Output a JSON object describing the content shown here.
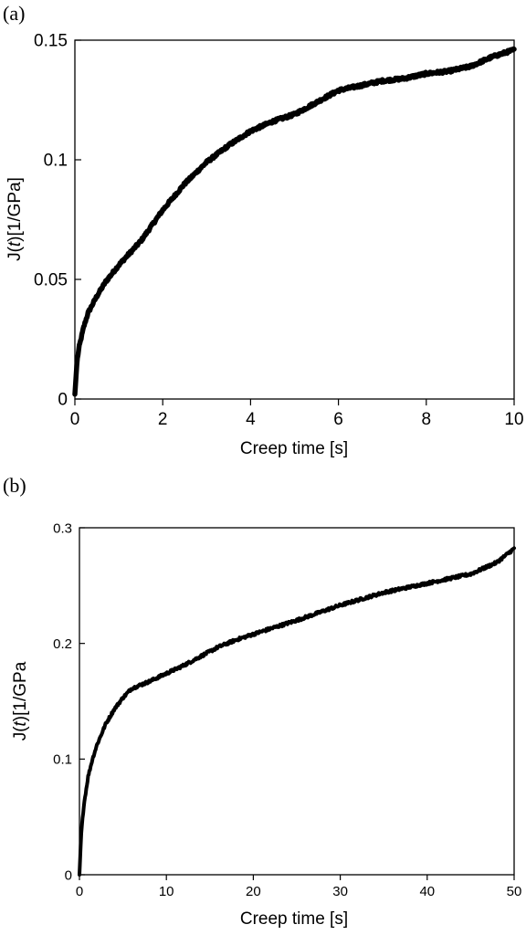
{
  "chart_data": [
    {
      "type": "line",
      "panel_label": "(a)",
      "xlabel": "Creep time [s]",
      "ylabel_prefix": "J(",
      "ylabel_var": "t",
      "ylabel_suffix": ")[1/GPa]",
      "xlim": [
        0,
        10
      ],
      "ylim": [
        0,
        0.15
      ],
      "xticks": [
        0,
        2,
        4,
        6,
        8,
        10
      ],
      "yticks": [
        0,
        0.05,
        0.1,
        0.15
      ],
      "xtick_labels": [
        "0",
        "2",
        "4",
        "6",
        "8",
        "10"
      ],
      "ytick_labels": [
        "0",
        "0.05",
        "0.1",
        "0.15"
      ],
      "grid": false,
      "series": [
        {
          "color": "#000000",
          "x": [
            0,
            0.05,
            0.1,
            0.2,
            0.3,
            0.5,
            0.7,
            1,
            1.5,
            2,
            2.5,
            3,
            3.5,
            4,
            4.5,
            5,
            5.5,
            6,
            6.5,
            7,
            7.5,
            8,
            8.5,
            9,
            9.5,
            10
          ],
          "y": [
            0.002,
            0.016,
            0.022,
            0.03,
            0.036,
            0.043,
            0.049,
            0.056,
            0.066,
            0.079,
            0.09,
            0.099,
            0.106,
            0.112,
            0.116,
            0.119,
            0.124,
            0.129,
            0.131,
            0.133,
            0.134,
            0.136,
            0.137,
            0.139,
            0.143,
            0.146
          ]
        }
      ]
    },
    {
      "type": "line",
      "panel_label": "(b)",
      "xlabel": "Creep time [s]",
      "ylabel_prefix": "J(",
      "ylabel_var": "t",
      "ylabel_suffix": ")[1/GPa",
      "xlim": [
        0,
        50
      ],
      "ylim": [
        0,
        0.3
      ],
      "xticks": [
        0,
        10,
        20,
        30,
        40,
        50
      ],
      "yticks": [
        0,
        0.1,
        0.2,
        0.3
      ],
      "xtick_labels": [
        "0",
        "10",
        "20",
        "30",
        "40",
        "50"
      ],
      "ytick_labels": [
        "0",
        "0.1",
        "0.2",
        "0.3"
      ],
      "grid": false,
      "series": [
        {
          "color": "#000000",
          "x": [
            0,
            0.2,
            0.5,
            1,
            1.5,
            2,
            3,
            4,
            5,
            6,
            8,
            10,
            12,
            14,
            16,
            18,
            20,
            25,
            30,
            35,
            40,
            45,
            48,
            50
          ],
          "y": [
            0,
            0.035,
            0.06,
            0.085,
            0.1,
            0.112,
            0.13,
            0.143,
            0.153,
            0.161,
            0.167,
            0.174,
            0.181,
            0.189,
            0.197,
            0.203,
            0.208,
            0.22,
            0.233,
            0.244,
            0.252,
            0.26,
            0.27,
            0.282
          ]
        }
      ]
    }
  ]
}
